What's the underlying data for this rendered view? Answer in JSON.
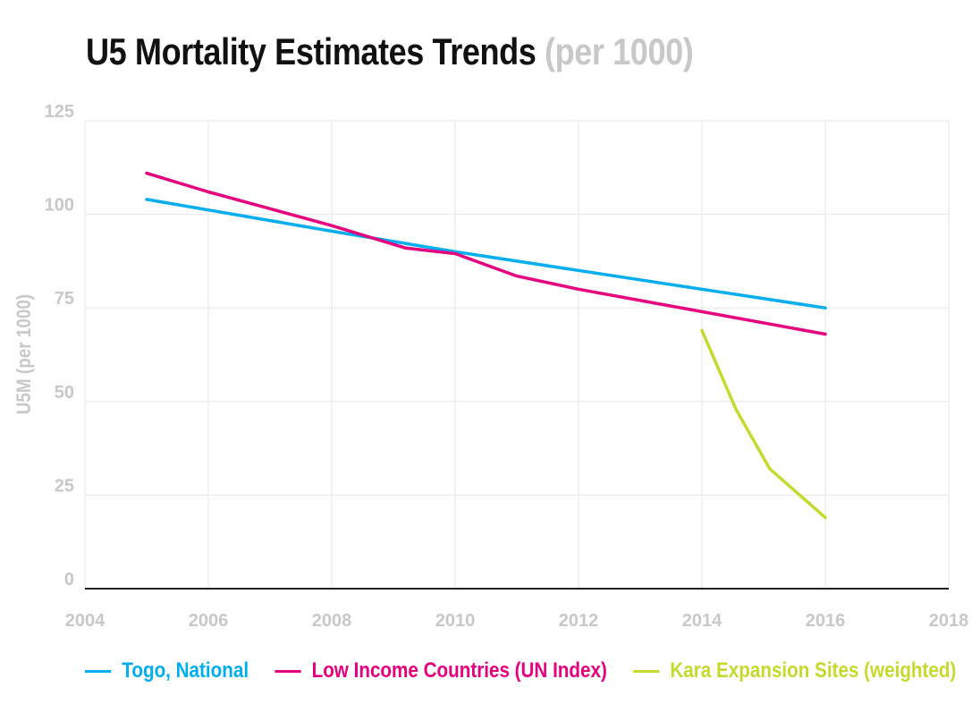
{
  "header": {
    "title_main": "U5 Mortality Estimates Trends",
    "title_unit": "(per 1000)"
  },
  "chart_data": {
    "type": "line",
    "title": "U5 Mortality Estimates Trends (per 1000)",
    "xlabel": "",
    "ylabel": "U5M (per 1000)",
    "xlim": [
      2004,
      2018
    ],
    "ylim": [
      0,
      125
    ],
    "x_ticks": [
      "2004",
      "2006",
      "2008",
      "2010",
      "2012",
      "2014",
      "2016",
      "2018"
    ],
    "y_ticks": [
      "0",
      "25",
      "50",
      "75",
      "100",
      "125"
    ],
    "grid": true,
    "legend_position": "bottom",
    "series": [
      {
        "name": "Togo, National",
        "color": "#00aeef",
        "points": [
          [
            2005,
            104
          ],
          [
            2008,
            95.5
          ],
          [
            2010,
            90
          ],
          [
            2014,
            80
          ],
          [
            2016,
            75
          ]
        ]
      },
      {
        "name": "Low Income Countries (UN Index)",
        "color": "#e6007e",
        "points": [
          [
            2005,
            111
          ],
          [
            2006,
            106
          ],
          [
            2007,
            101.5
          ],
          [
            2008,
            97
          ],
          [
            2009.2,
            91
          ],
          [
            2010,
            89.5
          ],
          [
            2011,
            83.5
          ],
          [
            2012,
            80
          ],
          [
            2013.5,
            75.5
          ],
          [
            2016,
            68
          ]
        ]
      },
      {
        "name": "Kara Expansion Sites (weighted)",
        "color": "#c5da2d",
        "points": [
          [
            2014,
            69
          ],
          [
            2014.55,
            48
          ],
          [
            2015.1,
            32
          ],
          [
            2016,
            19
          ]
        ]
      }
    ]
  }
}
